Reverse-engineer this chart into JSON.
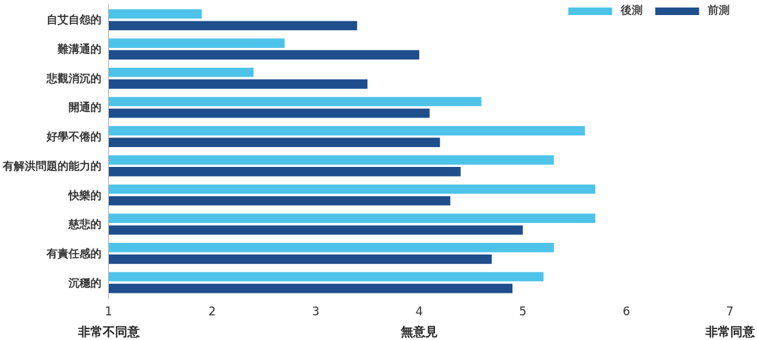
{
  "chart_data": {
    "type": "bar",
    "orientation": "horizontal",
    "categories": [
      "自艾自怨的",
      "難溝通的",
      "悲觀消沉的",
      "開通的",
      "好學不倦的",
      "有解洪問題的能力的",
      "快樂的",
      "慈悲的",
      "有責任感的",
      "沉穩的"
    ],
    "series": [
      {
        "name": "後測",
        "color": "#4ec3ea",
        "values": [
          1.9,
          2.7,
          2.4,
          4.6,
          5.6,
          5.3,
          5.7,
          5.7,
          5.3,
          5.2
        ]
      },
      {
        "name": "前測",
        "color": "#1f4e8c",
        "values": [
          3.4,
          4.0,
          3.5,
          4.1,
          4.2,
          4.4,
          4.3,
          5.0,
          4.7,
          4.9
        ]
      }
    ],
    "xlim": [
      1,
      7
    ],
    "xticks": [
      1,
      2,
      3,
      4,
      5,
      6,
      7
    ],
    "annotations": [
      "非常不同意",
      "無意見",
      "非常同意"
    ],
    "grid": false,
    "legend": "top right"
  }
}
